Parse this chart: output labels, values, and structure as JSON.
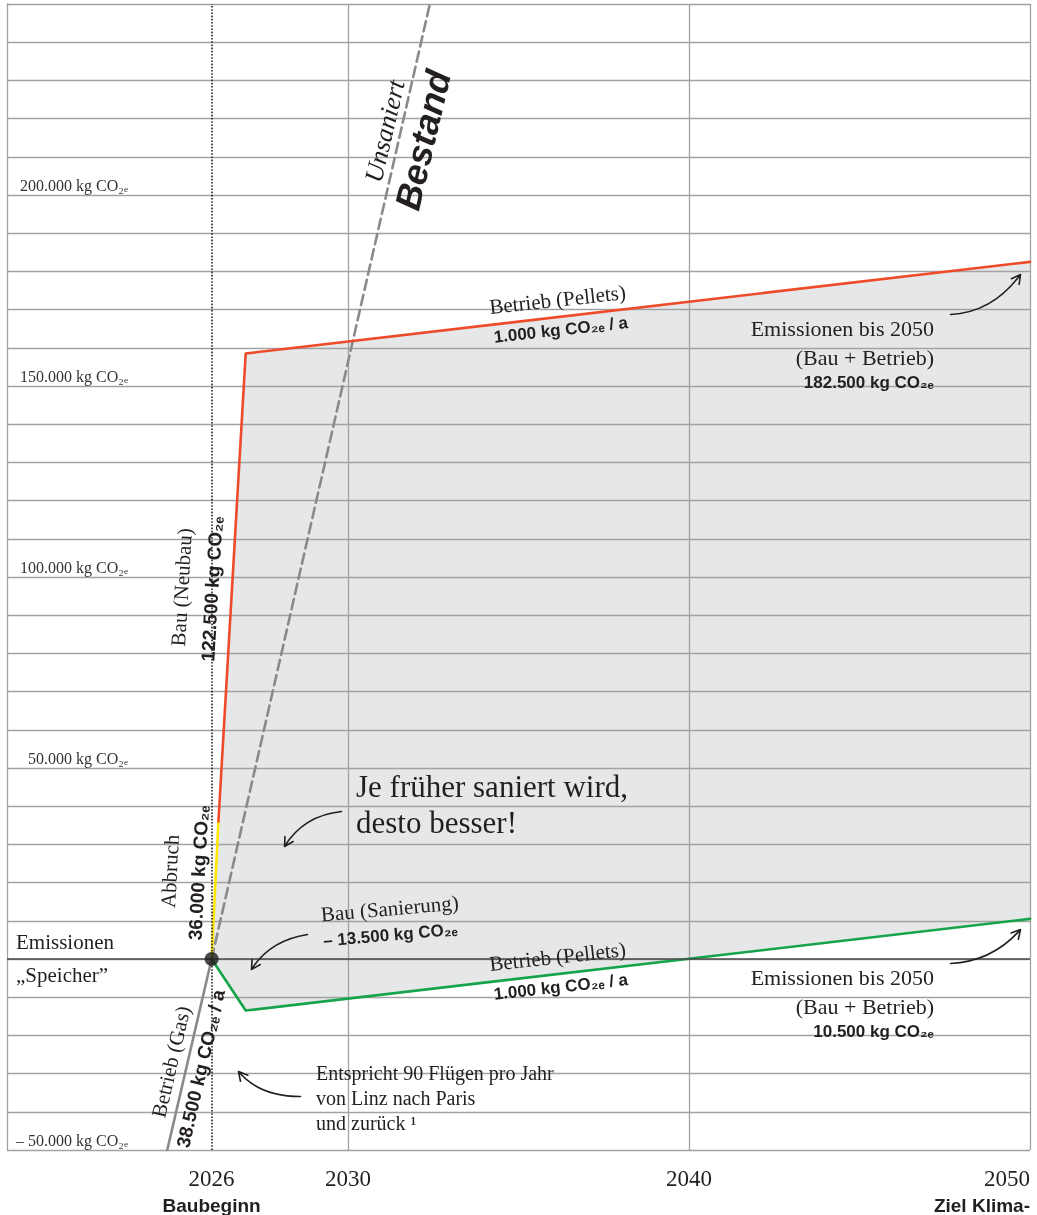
{
  "chart_data": {
    "type": "line",
    "xlim": [
      2020,
      2050
    ],
    "xticks": [
      {
        "value": 2026,
        "label": "2026\nBaubeginn"
      },
      2030,
      2040,
      {
        "value": 2050,
        "label": "2050\nZiel Klima-"
      }
    ],
    "ylim": [
      -50000,
      250000
    ],
    "yticks": [
      {
        "value": -50000,
        "label": "– 50.000 kg CO₂ₑ"
      },
      {
        "value": -40000,
        "label": null
      },
      {
        "value": -30000,
        "label": null
      },
      {
        "value": -20000,
        "label": null
      },
      {
        "value": -10000,
        "label": null
      },
      {
        "value": 0,
        "label": null
      },
      {
        "value": 10000,
        "label": null
      },
      {
        "value": 20000,
        "label": null
      },
      {
        "value": 30000,
        "label": null
      },
      {
        "value": 40000,
        "label": null
      },
      {
        "value": 50000,
        "label": "50.000 kg CO₂ₑ"
      },
      {
        "value": 60000,
        "label": null
      },
      {
        "value": 70000,
        "label": null
      },
      {
        "value": 80000,
        "label": null
      },
      {
        "value": 90000,
        "label": null
      },
      {
        "value": 100000,
        "label": "100.000 kg CO₂ₑ"
      },
      {
        "value": 110000,
        "label": null
      },
      {
        "value": 120000,
        "label": null
      },
      {
        "value": 130000,
        "label": null
      },
      {
        "value": 140000,
        "label": null
      },
      {
        "value": 150000,
        "label": "150.000 kg CO₂ₑ"
      },
      {
        "value": 160000,
        "label": null
      },
      {
        "value": 170000,
        "label": null
      },
      {
        "value": 180000,
        "label": null
      },
      {
        "value": 190000,
        "label": null
      },
      {
        "value": 200000,
        "label": "200.000 kg CO₂ₑ"
      },
      {
        "value": 210000,
        "label": null
      },
      {
        "value": 220000,
        "label": null
      },
      {
        "value": 230000,
        "label": null
      },
      {
        "value": 240000,
        "label": null
      },
      {
        "value": 250000,
        "label": null
      }
    ],
    "grid": true,
    "ref_lines": [
      {
        "axis": "x",
        "value": 2026,
        "line_style": "dotted",
        "color": "#231f20"
      },
      {
        "axis": "y",
        "value": 0,
        "label": "Emissionen\n„Speicher”",
        "color": "#4a4a4a"
      }
    ],
    "series": [
      {
        "color": "#8a8a8a",
        "x": [
          2024.7,
          2026
        ],
        "values": [
          -50000,
          0
        ]
      },
      {
        "color": "#8a8a8a",
        "line_style": "dashed",
        "x": [
          2026,
          2032.4
        ],
        "values": [
          0,
          250000
        ]
      },
      {
        "color": "#ffe600",
        "x": [
          2026,
          2026.2
        ],
        "values": [
          0,
          36000
        ]
      },
      {
        "color": "#ee4b2b",
        "x": [
          2026.2,
          2027,
          2050
        ],
        "values": [
          36000,
          158500,
          182500
        ]
      },
      {
        "color": "#16a44a",
        "x": [
          2026,
          2027,
          2050
        ],
        "values": [
          0,
          -13500,
          10500
        ],
        "lower": [
          0,
          -13500,
          10500
        ],
        "upper": [
          0,
          158500,
          182500
        ]
      },
      {
        "type": "scatter",
        "marker": "circle",
        "color": "#1d1d1b",
        "x": [
          2026
        ],
        "values": [
          0
        ]
      }
    ],
    "annotations": [
      {
        "text": "Unsaniert\nBestand",
        "x": 2031.45,
        "y": 216000
      },
      {
        "text": "Betrieb (Pellets)\n1.000 kg CO₂ₑ / a",
        "x": 2036.2,
        "y": 169000
      },
      "Emissionen bis 2050\n(Bau + Betrieb)\n182.500 kg CO₂ₑ",
      {
        "text": "Bau (Neubau)\n122.500 kg CO₂ₑ",
        "x": 2026.6,
        "y": 97250
      },
      {
        "text": "Abbruch\n36.000 kg CO₂ₑ",
        "x": 2026.1,
        "y": 18000
      },
      "Je früher saniert wird,\ndesto besser!",
      "Bau (Sanierung)\n– 13.500 kg CO₂ₑ",
      {
        "text": "Betrieb (Pellets)\n1.000 kg CO₂ₑ / a",
        "x": 2036.2,
        "y": -3000
      },
      "Emissionen bis 2050\n(Bau + Betrieb)\n10.500 kg CO₂ₑ",
      {
        "text": "Betrieb (Gas)\n38.500 kg CO₂ₑ / a",
        "x": 2025.35,
        "y": -28000
      },
      "Entspricht 90 Flügen pro Jahr\nvon Linz nach Paris\nund zurück ¹"
    ]
  }
}
